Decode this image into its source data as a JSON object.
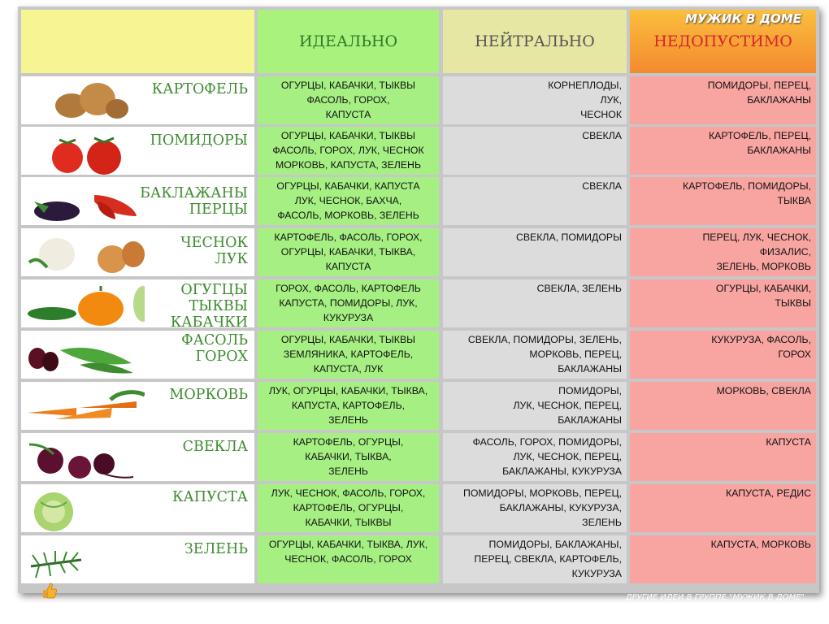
{
  "brand": "МУЖИК В ДОМЕ",
  "headers": {
    "plant": "",
    "ideal": "ИДЕАЛЬНО",
    "neutral": "НЕЙТРАЛЬНО",
    "forbidden": "НЕДОПУСТИМО"
  },
  "rows": [
    {
      "name": "КАРТОФЕЛЬ",
      "icon": "potato-icon",
      "ideal": "ОГУРЦЫ, КАБАЧКИ, ТЫКВЫ\nФАСОЛЬ, ГОРОХ,\nКАПУСТА",
      "neutral": "КОРНЕПЛОДЫ,\nЛУК,\nЧЕСНОК",
      "forbidden": "ПОМИДОРЫ, ПЕРЕЦ,\nБАКЛАЖАНЫ"
    },
    {
      "name": "ПОМИДОРЫ",
      "icon": "tomato-icon",
      "ideal": "ОГУРЦЫ, КАБАЧКИ, ТЫКВЫ\nФАСОЛЬ, ГОРОХ, ЛУК, ЧЕСНОК\nМОРКОВЬ, КАПУСТА, ЗЕЛЕНЬ",
      "neutral": "СВЕКЛА",
      "forbidden": "КАРТОФЕЛЬ, ПЕРЕЦ,\nБАКЛАЖАНЫ"
    },
    {
      "name": "БАКЛАЖАНЫ\nПЕРЦЫ",
      "icon": "eggplant-pepper-icon",
      "ideal": "ОГУРЦЫ, КАБАЧКИ, КАПУСТА\nЛУК, ЧЕСНОК, БАХЧА,\nФАСОЛЬ, МОРКОВЬ, ЗЕЛЕНЬ",
      "neutral": "СВЕКЛА",
      "forbidden": "КАРТОФЕЛЬ, ПОМИДОРЫ,\nТЫКВА"
    },
    {
      "name": "ЧЕСНОК\nЛУК",
      "icon": "garlic-onion-icon",
      "ideal": "КАРТОФЕЛЬ, ФАСОЛЬ, ГОРОХ,\nОГУРЦЫ, КАБАЧКИ, ТЫКВА,\nКАПУСТА",
      "neutral": "СВЕКЛА, ПОМИДОРЫ",
      "forbidden": "ПЕРЕЦ, ЛУК, ЧЕСНОК,\nФИЗАЛИС,\nЗЕЛЕНЬ, МОРКОВЬ"
    },
    {
      "name": "ОГУГЦЫ\nТЫКВЫ\nКАБАЧКИ",
      "icon": "cucumber-pumpkin-zucchini-icon",
      "ideal": "ГОРОХ, ФАСОЛЬ, КАРТОФЕЛЬ\nКАПУСТА, ПОМИДОРЫ, ЛУК,\nКУКУРУЗА",
      "neutral": "СВЕКЛА, ЗЕЛЕНЬ",
      "forbidden": "ОГУРЦЫ, КАБАЧКИ,\nТЫКВЫ"
    },
    {
      "name": "ФАСОЛЬ\nГОРОХ",
      "icon": "beans-peas-icon",
      "ideal": "ОГУРЦЫ, КАБАЧКИ, ТЫКВЫ\nЗЕМЛЯНИКА, КАРТОФЕЛЬ,\nКАПУСТА, ЛУК",
      "neutral": "СВЕКЛА, ПОМИДОРЫ, ЗЕЛЕНЬ,\nМОРКОВЬ, ПЕРЕЦ,\nБАКЛАЖАНЫ",
      "forbidden": "КУКУРУЗА, ФАСОЛЬ,\nГОРОХ"
    },
    {
      "name": "МОРКОВЬ",
      "icon": "carrot-icon",
      "ideal": "ЛУК, ОГУРЦЫ, КАБАЧКИ, ТЫКВА,\nКАПУСТА, КАРТОФЕЛЬ,\nЗЕЛЕНЬ",
      "neutral": "ПОМИДОРЫ,\nЛУК, ЧЕСНОК, ПЕРЕЦ,\nБАКЛАЖАНЫ",
      "forbidden": "МОРКОВЬ, СВЕКЛА"
    },
    {
      "name": "СВЕКЛА",
      "icon": "beet-icon",
      "ideal": "КАРТОФЕЛЬ, ОГУРЦЫ,\nКАБАЧКИ, ТЫКВА,\nЗЕЛЕНЬ",
      "neutral": "ФАСОЛЬ, ГОРОХ, ПОМИДОРЫ,\nЛУК, ЧЕСНОК, ПЕРЕЦ,\nБАКЛАЖАНЫ, КУКУРУЗА",
      "forbidden": "КАПУСТА"
    },
    {
      "name": "КАПУСТА",
      "icon": "cabbage-icon",
      "ideal": "ЛУК, ЧЕСНОК, ФАСОЛЬ, ГОРОХ,\nКАРТОФЕЛЬ, ОГУРЦЫ,\nКАБАЧКИ, ТЫКВЫ",
      "neutral": "ПОМИДОРЫ, МОРКОВЬ, ПЕРЕЦ,\nБАКЛАЖАНЫ, КУКУРУЗА,\nЗЕЛЕНЬ",
      "forbidden": "КАПУСТА, РЕДИС"
    },
    {
      "name": "ЗЕЛЕНЬ",
      "icon": "dill-icon",
      "ideal": "ОГУРЦЫ, КАБАЧКИ, ТЫКВА, ЛУК,\nЧЕСНОК, ФАСОЛЬ, ГОРОХ",
      "neutral": "ПОМИДОРЫ, БАКЛАЖАНЫ,\nПЕРЕЦ, СВЕКЛА, КАРТОФЕЛЬ,\nКУКУРУЗА",
      "forbidden": "КАПУСТА, МОРКОВЬ"
    }
  ],
  "footer": "ДРУГИЕ ИДЕИ В ГРУППЕ \"МУЖИК В ДОМЕ\""
}
